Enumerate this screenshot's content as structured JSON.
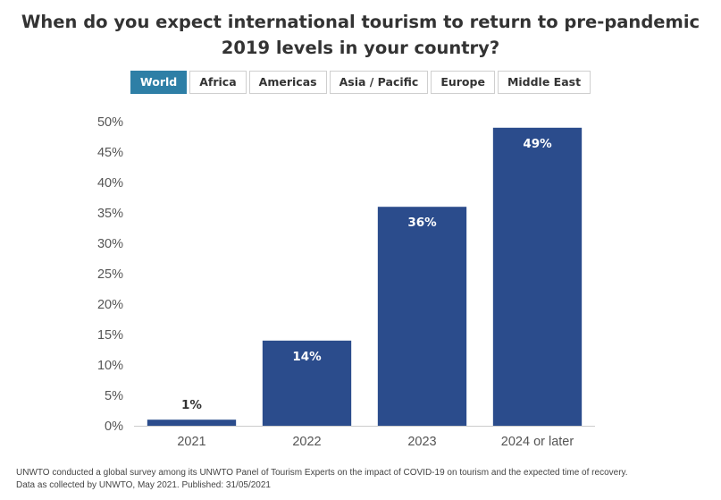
{
  "title": "When do you expect international tourism to return to pre-pandemic 2019 levels in your country?",
  "tabs": [
    {
      "label": "World",
      "active": true
    },
    {
      "label": "Africa",
      "active": false
    },
    {
      "label": "Americas",
      "active": false
    },
    {
      "label": "Asia / Pacific",
      "active": false
    },
    {
      "label": "Europe",
      "active": false
    },
    {
      "label": "Middle East",
      "active": false
    }
  ],
  "colors": {
    "bar": "#2b4c8c",
    "tab_active": "#2e7fa6",
    "grid": "#e6e6e6"
  },
  "chart_data": {
    "type": "bar",
    "categories": [
      "2021",
      "2022",
      "2023",
      "2024 or later"
    ],
    "values": [
      1,
      14,
      36,
      49
    ],
    "data_labels": [
      "1%",
      "14%",
      "36%",
      "49%"
    ],
    "yticks": [
      "0%",
      "5%",
      "10%",
      "15%",
      "20%",
      "25%",
      "30%",
      "35%",
      "40%",
      "45%",
      "50%"
    ],
    "ylim": [
      0,
      50
    ],
    "grid": false
  },
  "footer": {
    "line1": "UNWTO conducted a global survey among its UNWTO Panel of Tourism Experts on the impact of COVID-19 on tourism and the expected time of recovery.",
    "line2": "Data as collected by UNWTO, May 2021. Published: 31/05/2021"
  }
}
